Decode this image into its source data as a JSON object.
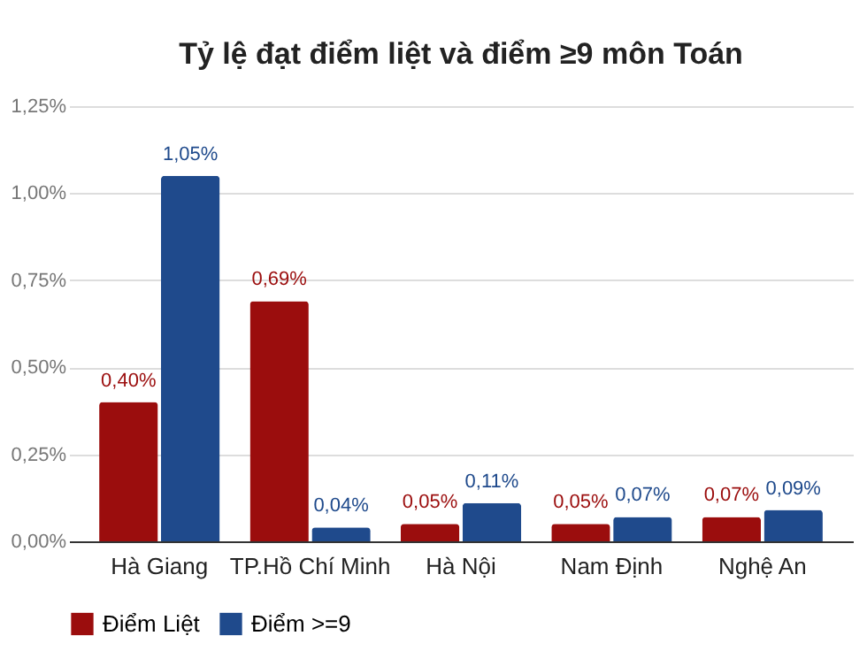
{
  "chart_data": {
    "type": "bar",
    "title": "Tỷ lệ đạt điểm liệt và điểm ≥9 môn Toán",
    "categories": [
      "Hà Giang",
      "TP.Hồ Chí Minh",
      "Hà Nội",
      "Nam Định",
      "Nghệ An"
    ],
    "series": [
      {
        "name": "Điểm Liệt",
        "color": "#9b0d0d",
        "values": [
          0.4,
          0.69,
          0.05,
          0.05,
          0.07
        ],
        "value_labels": [
          "0,40%",
          "0,69%",
          "0,05%",
          "0,05%",
          "0,07%"
        ]
      },
      {
        "name": "Điểm >=9",
        "color": "#1f4a8c",
        "values": [
          1.05,
          0.04,
          0.11,
          0.07,
          0.09
        ],
        "value_labels": [
          "1,05%",
          "0,04%",
          "0,11%",
          "0,07%",
          "0,09%"
        ]
      }
    ],
    "ylim": [
      0,
      1.25
    ],
    "yticks": [
      {
        "value": 0,
        "label": "0,00%"
      },
      {
        "value": 0.25,
        "label": "0,25%"
      },
      {
        "value": 0.5,
        "label": "0,50%"
      },
      {
        "value": 0.75,
        "label": "0,75%"
      },
      {
        "value": 1.0,
        "label": "1,00%"
      },
      {
        "value": 1.25,
        "label": "1,25%"
      }
    ],
    "grid": "y",
    "legend": "bottom"
  }
}
